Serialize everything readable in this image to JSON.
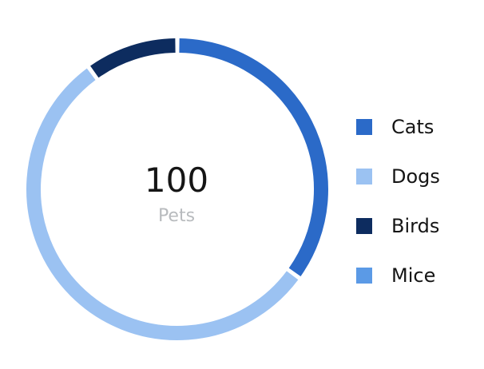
{
  "chart_data": {
    "type": "pie",
    "style": "donut",
    "categories": [
      "Cats",
      "Dogs",
      "Birds",
      "Mice"
    ],
    "values": [
      35,
      55,
      10,
      0
    ],
    "colors": [
      "#2b6ac8",
      "#9bc2f2",
      "#0d2c5f",
      "#5b9ae6"
    ],
    "center_total": "100",
    "center_label": "Pets",
    "legend_position": "right"
  },
  "legend": {
    "items": [
      {
        "label": "Cats",
        "color": "#2b6ac8"
      },
      {
        "label": "Dogs",
        "color": "#9bc2f2"
      },
      {
        "label": "Birds",
        "color": "#0d2c5f"
      },
      {
        "label": "Mice",
        "color": "#5b9ae6"
      }
    ]
  }
}
